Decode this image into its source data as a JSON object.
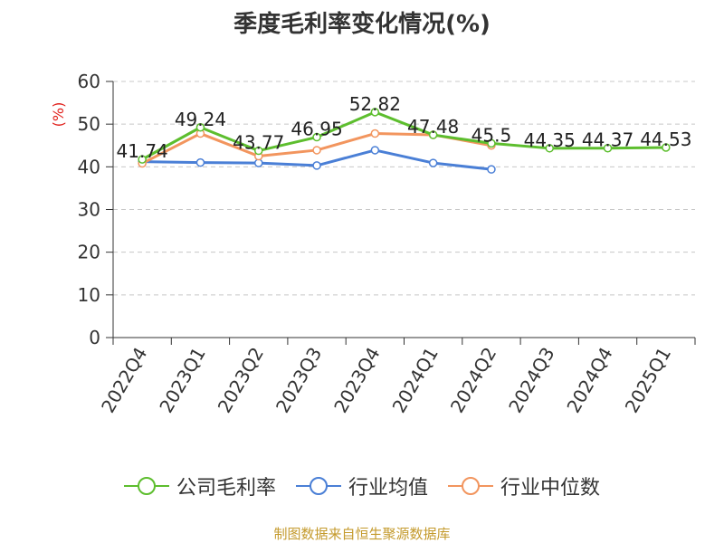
{
  "chart_data": {
    "type": "line",
    "title": "季度毛利率变化情况(%)",
    "ylabel": "(%)",
    "ylim": [
      0,
      60
    ],
    "yticks": [
      0,
      10,
      20,
      30,
      40,
      50,
      60
    ],
    "grid": true,
    "legend_position": "bottom",
    "categories": [
      "2022Q4",
      "2023Q1",
      "2023Q2",
      "2023Q3",
      "2023Q4",
      "2024Q1",
      "2024Q2",
      "2024Q3",
      "2024Q4",
      "2025Q1"
    ],
    "series": [
      {
        "name": "公司毛利率",
        "color": "#5dbe2e",
        "values": [
          41.74,
          49.24,
          43.77,
          46.95,
          52.82,
          47.48,
          45.5,
          44.35,
          44.37,
          44.53
        ],
        "labels": [
          "41.74",
          "49.24",
          "43.77",
          "46.95",
          "52.82",
          "47.48",
          "45.5",
          "44.35",
          "44.37",
          "44.53"
        ]
      },
      {
        "name": "行业均值",
        "color": "#4a7fd6",
        "values": [
          41.2,
          41.0,
          40.9,
          40.3,
          43.9,
          40.9,
          39.4,
          null,
          null,
          null
        ]
      },
      {
        "name": "行业中位数",
        "color": "#f2955e",
        "values": [
          40.8,
          47.8,
          42.5,
          43.9,
          47.8,
          47.5,
          45.0,
          null,
          null,
          null
        ]
      }
    ]
  },
  "footer": "制图数据来自恒生聚源数据库"
}
